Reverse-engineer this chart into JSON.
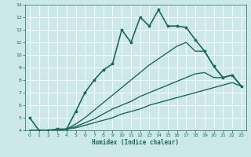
{
  "xlabel": "Humidex (Indice chaleur)",
  "ylabel": "",
  "bg_color": "#cce8e8",
  "grid_color": "#ffffff",
  "line_color": "#1a6b5a",
  "xlim": [
    -0.5,
    23.5
  ],
  "ylim": [
    4,
    14
  ],
  "xticks": [
    0,
    1,
    2,
    3,
    4,
    5,
    6,
    7,
    8,
    9,
    10,
    11,
    12,
    13,
    14,
    15,
    16,
    17,
    18,
    19,
    20,
    21,
    22,
    23
  ],
  "yticks": [
    4,
    5,
    6,
    7,
    8,
    9,
    10,
    11,
    12,
    13,
    14
  ],
  "lines": [
    {
      "x": [
        0,
        1,
        2,
        3,
        4,
        5,
        6,
        7,
        8,
        9,
        10,
        11,
        12,
        13,
        14,
        15,
        16,
        17,
        18,
        19,
        20,
        21,
        22,
        23
      ],
      "y": [
        5.0,
        4.0,
        4.0,
        4.1,
        4.1,
        5.5,
        7.0,
        8.0,
        8.8,
        9.3,
        12.0,
        11.0,
        13.0,
        12.3,
        13.6,
        12.3,
        12.3,
        12.2,
        11.2,
        10.3,
        9.1,
        8.2,
        8.4,
        7.5
      ],
      "marker": true,
      "linewidth": 1.2,
      "markersize": 2.5
    },
    {
      "x": [
        0,
        1,
        2,
        3,
        4,
        5,
        6,
        7,
        8,
        9,
        10,
        11,
        12,
        13,
        14,
        15,
        16,
        17,
        18,
        19,
        20,
        21,
        22,
        23
      ],
      "y": [
        4.0,
        4.0,
        4.0,
        4.0,
        4.1,
        4.2,
        4.4,
        4.6,
        4.8,
        5.0,
        5.3,
        5.5,
        5.7,
        6.0,
        6.2,
        6.4,
        6.6,
        6.8,
        7.0,
        7.2,
        7.4,
        7.6,
        7.8,
        7.5
      ],
      "marker": false,
      "linewidth": 1.0
    },
    {
      "x": [
        0,
        1,
        2,
        3,
        4,
        5,
        6,
        7,
        8,
        9,
        10,
        11,
        12,
        13,
        14,
        15,
        16,
        17,
        18,
        19,
        20,
        21,
        22,
        23
      ],
      "y": [
        4.0,
        4.0,
        4.0,
        4.0,
        4.1,
        4.3,
        4.6,
        4.9,
        5.3,
        5.7,
        6.0,
        6.3,
        6.7,
        7.0,
        7.3,
        7.6,
        7.9,
        8.2,
        8.5,
        8.6,
        8.2,
        8.2,
        8.4,
        7.5
      ],
      "marker": false,
      "linewidth": 1.0
    },
    {
      "x": [
        0,
        1,
        2,
        3,
        4,
        5,
        6,
        7,
        8,
        9,
        10,
        11,
        12,
        13,
        14,
        15,
        16,
        17,
        18,
        19,
        20,
        21,
        22,
        23
      ],
      "y": [
        4.0,
        4.0,
        4.0,
        4.0,
        4.1,
        4.5,
        5.0,
        5.6,
        6.2,
        6.8,
        7.4,
        8.0,
        8.6,
        9.2,
        9.7,
        10.2,
        10.7,
        11.0,
        10.3,
        10.3,
        9.1,
        8.2,
        8.4,
        7.5
      ],
      "marker": false,
      "linewidth": 1.0
    }
  ]
}
